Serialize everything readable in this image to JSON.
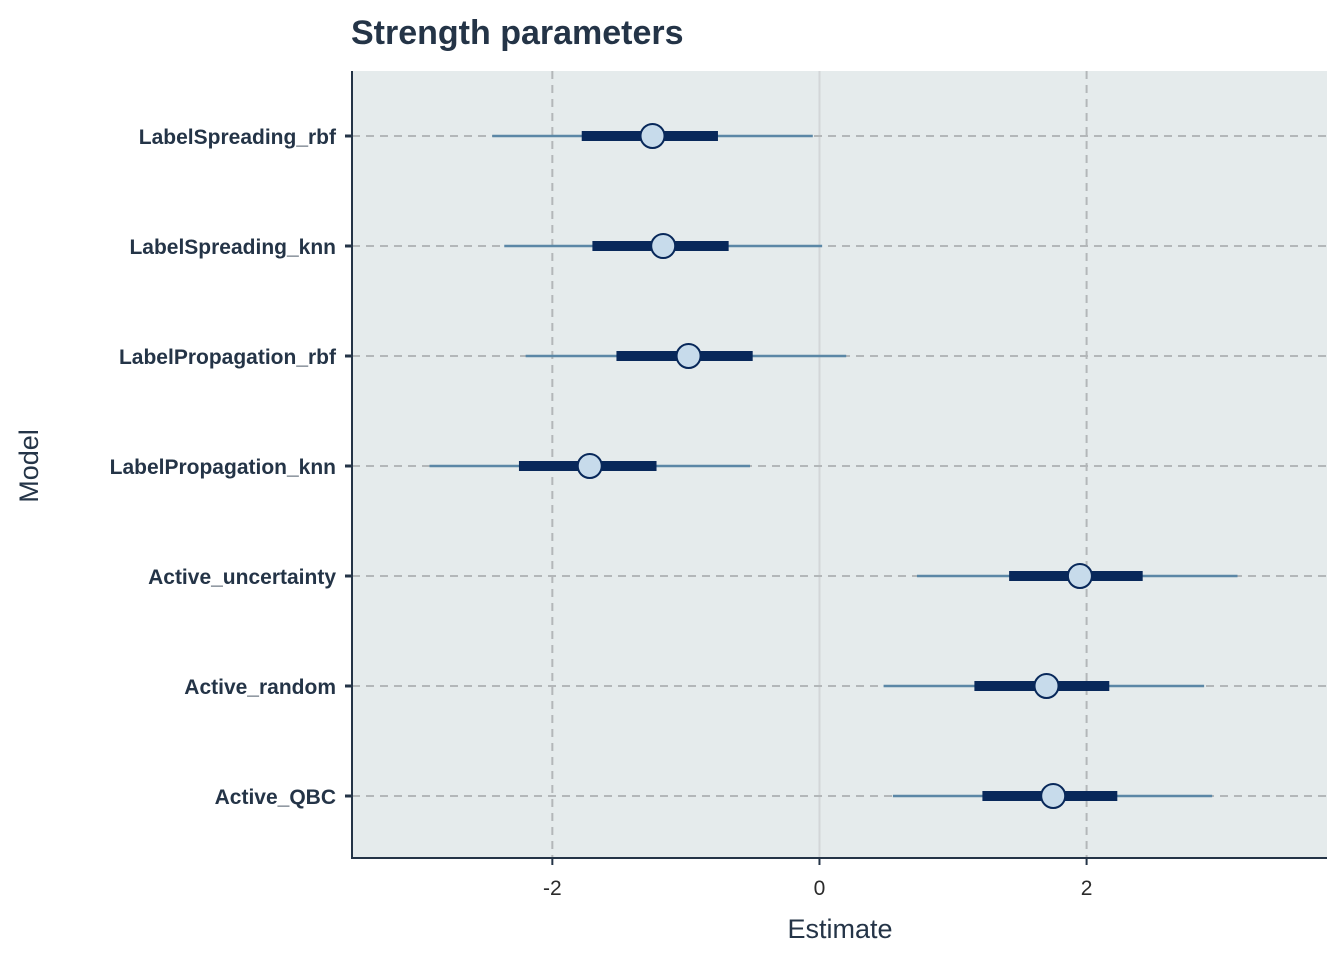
{
  "chart_data": {
    "type": "interval",
    "title": "Strength parameters",
    "xlabel": "Estimate",
    "ylabel": "Model",
    "xlim": [
      -3.5,
      3.8
    ],
    "xticks": [
      -2,
      0,
      2
    ],
    "xtick_labels": [
      "-2",
      "0",
      "2"
    ],
    "grid": "dashed at x ticks and at each category",
    "categories": [
      "LabelSpreading_rbf",
      "LabelSpreading_knn",
      "LabelPropagation_rbf",
      "LabelPropagation_knn",
      "Active_uncertainty",
      "Active_random",
      "Active_QBC"
    ],
    "series": [
      {
        "estimate": [
          -1.25,
          -1.17,
          -0.98,
          -1.72,
          1.95,
          1.7,
          1.75
        ],
        "inner_low": [
          -1.78,
          -1.7,
          -1.52,
          -2.25,
          1.42,
          1.16,
          1.22
        ],
        "inner_high": [
          -0.76,
          -0.68,
          -0.5,
          -1.22,
          2.42,
          2.17,
          2.23
        ],
        "outer_low": [
          -2.45,
          -2.36,
          -2.2,
          -2.92,
          0.73,
          0.48,
          0.55
        ],
        "outer_high": [
          -0.05,
          0.02,
          0.2,
          -0.52,
          3.13,
          2.88,
          2.94
        ]
      }
    ]
  },
  "colors": {
    "panel": "#e5ebec",
    "outer_line": "#5b87a6",
    "inner_line": "#08285a",
    "point_fill": "#c7dbeb",
    "point_stroke": "#08285a",
    "grid": "#b3b7b9",
    "zero_line": "#d3d6d8",
    "axis": "#243447",
    "text": "#243447"
  }
}
